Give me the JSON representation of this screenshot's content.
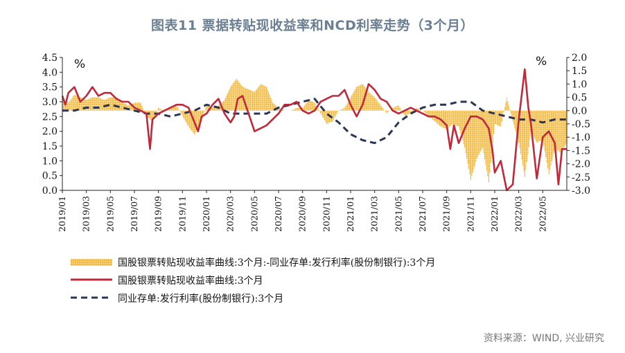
{
  "title": "图表11 票据转贴现收益率和NCD利率走势（3个月）",
  "source": "资料来源：WIND, 兴业研究",
  "colors": {
    "bar": "#f2b233",
    "bill": "#c0283a",
    "ncd": "#2a3553",
    "title": "#6b7f93"
  },
  "chart_data": {
    "type": "line",
    "left_unit": "%",
    "right_unit": "%",
    "left_axis": {
      "range": [
        0,
        4.5
      ],
      "ticks": [
        "0.0",
        "0.5",
        "1.0",
        "1.5",
        "2.0",
        "2.5",
        "3.0",
        "3.5",
        "4.0",
        "4.5"
      ]
    },
    "right_axis": {
      "range": [
        -3.0,
        2.0
      ],
      "ticks": [
        "-3.0",
        "-2.5",
        "-2.0",
        "-1.5",
        "-1.0",
        "-0.5",
        "0.0",
        "0.5",
        "1.0",
        "1.5",
        "2.0"
      ]
    },
    "x_ticks": [
      "2019/01",
      "2019/03",
      "2019/05",
      "2019/07",
      "2019/09",
      "2019/11",
      "2020/01",
      "2020/03",
      "2020/05",
      "2020/07",
      "2020/09",
      "2020/11",
      "2021/01",
      "2021/03",
      "2021/05",
      "2021/07",
      "2021/09",
      "2021/11",
      "2022/01",
      "2022/03",
      "2022/05"
    ],
    "series": [
      {
        "name": "国股银票转贴现收益率曲线:3个月:-同业存单:发行利率(股份制银行):3个月",
        "type": "bar",
        "axis": "right",
        "x": [
          0,
          0.5,
          1,
          1.5,
          2,
          2.5,
          3,
          3.5,
          4,
          4.5,
          5,
          5.5,
          6,
          6.5,
          7,
          7.5,
          8,
          8.5,
          9,
          9.5,
          10,
          10.5,
          11,
          11.5,
          12,
          12.5,
          13,
          13.5,
          14,
          14.5,
          15,
          15.5,
          16,
          16.5,
          17,
          17.5,
          18,
          18.5,
          19,
          19.5,
          20,
          20.5,
          21,
          21.5,
          22,
          22.5,
          23,
          23.5,
          24,
          24.5,
          25,
          25.5,
          26,
          26.5,
          27,
          27.5,
          28,
          28.5,
          29,
          29.5,
          30,
          30.5,
          31,
          31.5,
          32,
          32.5,
          33,
          33.5,
          34,
          34.5,
          35,
          35.5,
          36,
          36.5,
          37,
          37.5,
          38,
          38.5,
          39,
          39.5,
          40,
          40.5,
          41,
          41.5,
          42
        ],
        "values": [
          0.4,
          0.3,
          0.6,
          0.5,
          0.4,
          0.5,
          0.5,
          0.4,
          0.5,
          0.5,
          0.3,
          0.2,
          0.3,
          0.3,
          -0.2,
          -0.4,
          0.1,
          0.0,
          0.1,
          0.2,
          -0.2,
          -0.6,
          -0.9,
          -0.5,
          0.2,
          0.1,
          0.2,
          0.4,
          0.9,
          1.2,
          0.9,
          0.8,
          0.7,
          1.0,
          0.9,
          0.3,
          0.1,
          0.0,
          0.0,
          0.1,
          0.1,
          0.4,
          0.3,
          -0.1,
          -0.5,
          -0.4,
          0.0,
          0.1,
          0.5,
          0.9,
          1.0,
          0.7,
          0.5,
          0.2,
          -0.1,
          0.1,
          0.2,
          -0.2,
          -0.1,
          0.1,
          0.0,
          -0.2,
          -0.4,
          -0.6,
          -0.7,
          -0.5,
          -0.6,
          -1.4,
          -2.6,
          -1.8,
          -1.4,
          -2.7,
          -0.5,
          -0.6,
          0.5,
          -0.4,
          -1.2,
          -2.5,
          -0.8,
          -1.2,
          -1.1,
          -2.4,
          -1.4,
          -1.6,
          -1.2
        ]
      },
      {
        "name": "国股银票转贴现收益率曲线:3个月",
        "type": "line",
        "axis": "left",
        "x": [
          0,
          0.25,
          0.5,
          1,
          1.5,
          2,
          2.5,
          3,
          3.5,
          4,
          4.5,
          5,
          5.5,
          6,
          6.5,
          7,
          7.3,
          7.5,
          8,
          8.5,
          9,
          9.5,
          10,
          10.5,
          11,
          11.3,
          11.6,
          12,
          12.5,
          13,
          13.5,
          14,
          14.3,
          14.6,
          15,
          15.5,
          16,
          16.5,
          17,
          17.5,
          18,
          18.5,
          19,
          19.5,
          20,
          20.5,
          21,
          21.5,
          22,
          22.5,
          23,
          23.5,
          24,
          24.5,
          25,
          25.5,
          26,
          26.5,
          27,
          27.5,
          28,
          28.5,
          29,
          29.5,
          30,
          30.5,
          31,
          31.5,
          32,
          32.3,
          32.6,
          33,
          33.5,
          34,
          34.5,
          35,
          35.5,
          35.8,
          36,
          36.5,
          37,
          37.5,
          38,
          38.5,
          38.8,
          39,
          39.5,
          40,
          40.5,
          41,
          41.3,
          41.6,
          42
        ],
        "values": [
          3.2,
          2.9,
          3.3,
          3.5,
          3.0,
          3.2,
          3.5,
          3.2,
          3.3,
          3.3,
          3.1,
          3.0,
          3.0,
          2.8,
          2.7,
          2.6,
          1.4,
          2.4,
          2.6,
          2.7,
          2.8,
          2.9,
          2.9,
          2.8,
          2.3,
          2.0,
          2.5,
          2.6,
          2.9,
          3.1,
          2.6,
          2.3,
          2.5,
          3.1,
          3.2,
          2.6,
          2.0,
          2.1,
          2.2,
          2.4,
          2.6,
          2.9,
          2.9,
          3.0,
          2.7,
          2.6,
          2.7,
          3.0,
          3.1,
          3.2,
          3.2,
          3.4,
          2.9,
          2.5,
          2.9,
          3.6,
          3.4,
          3.1,
          3.0,
          2.7,
          2.6,
          2.7,
          2.8,
          2.7,
          2.6,
          2.5,
          2.5,
          2.4,
          2.2,
          1.4,
          2.2,
          1.6,
          2.1,
          2.5,
          2.5,
          2.4,
          2.1,
          1.4,
          0.6,
          1.0,
          0.0,
          0.2,
          2.4,
          4.1,
          2.8,
          2.3,
          0.4,
          1.8,
          2.0,
          1.6,
          0.2,
          1.4,
          1.4
        ]
      },
      {
        "name": "同业存单:发行利率(股份制银行):3个月",
        "type": "line",
        "axis": "left",
        "dash": true,
        "x": [
          0,
          1,
          2,
          3,
          4,
          5,
          6,
          7,
          8,
          9,
          10,
          11,
          12,
          13,
          14,
          15,
          16,
          17,
          18,
          19,
          20,
          21,
          22,
          23,
          24,
          25,
          26,
          27,
          28,
          29,
          30,
          31,
          32,
          33,
          34,
          35,
          36,
          37,
          38,
          39,
          40,
          41,
          42
        ],
        "values": [
          2.7,
          2.7,
          2.8,
          2.8,
          2.9,
          2.8,
          2.7,
          2.6,
          2.6,
          2.5,
          2.6,
          2.7,
          2.9,
          2.8,
          2.6,
          2.6,
          2.6,
          2.6,
          2.8,
          2.9,
          3.0,
          3.1,
          2.6,
          2.3,
          1.9,
          1.7,
          1.6,
          1.8,
          2.3,
          2.6,
          2.8,
          2.9,
          2.9,
          3.0,
          3.0,
          2.7,
          2.6,
          2.5,
          2.4,
          2.4,
          2.3,
          2.4,
          2.4
        ]
      }
    ]
  }
}
